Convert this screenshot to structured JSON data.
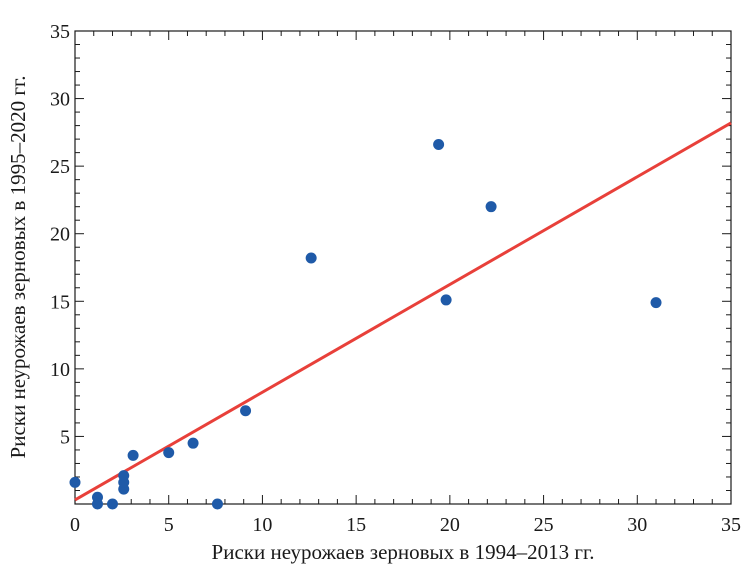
{
  "colors": {
    "point": "#1f5aa8",
    "fit_line": "#e8403a",
    "axis": "#1a1a1a"
  },
  "chart_data": {
    "type": "scatter",
    "title": "",
    "xlabel": "Риски неурожаев зерновых в 1994–2013 гг.",
    "ylabel": "Риски неурожаев зерновых в 1995–2020 гг.",
    "xlim": [
      0,
      35
    ],
    "ylim": [
      0,
      35
    ],
    "x_ticks": [
      0,
      5,
      10,
      15,
      20,
      25,
      30,
      35
    ],
    "y_ticks": [
      5,
      10,
      15,
      20,
      25,
      30,
      35
    ],
    "x_tick_labels": [
      "0",
      "5",
      "10",
      "15",
      "20",
      "25",
      "30",
      "35"
    ],
    "y_tick_labels": [
      "5",
      "10",
      "15",
      "20",
      "25",
      "30",
      "35"
    ],
    "grid": false,
    "legend": "none",
    "points": [
      {
        "x": 0.0,
        "y": 1.6
      },
      {
        "x": 1.2,
        "y": 0.5
      },
      {
        "x": 1.2,
        "y": 0.0
      },
      {
        "x": 2.0,
        "y": 0.0
      },
      {
        "x": 2.6,
        "y": 1.1
      },
      {
        "x": 2.6,
        "y": 1.6
      },
      {
        "x": 2.6,
        "y": 2.1
      },
      {
        "x": 3.1,
        "y": 3.6
      },
      {
        "x": 5.0,
        "y": 3.8
      },
      {
        "x": 6.3,
        "y": 4.5
      },
      {
        "x": 7.6,
        "y": 0.0
      },
      {
        "x": 9.1,
        "y": 6.9
      },
      {
        "x": 12.6,
        "y": 18.2
      },
      {
        "x": 19.4,
        "y": 26.6
      },
      {
        "x": 19.8,
        "y": 15.1
      },
      {
        "x": 22.2,
        "y": 22.0
      },
      {
        "x": 31.0,
        "y": 14.9
      }
    ],
    "fit_line": {
      "x": [
        0,
        35
      ],
      "y": [
        0.3,
        28.2
      ]
    }
  }
}
